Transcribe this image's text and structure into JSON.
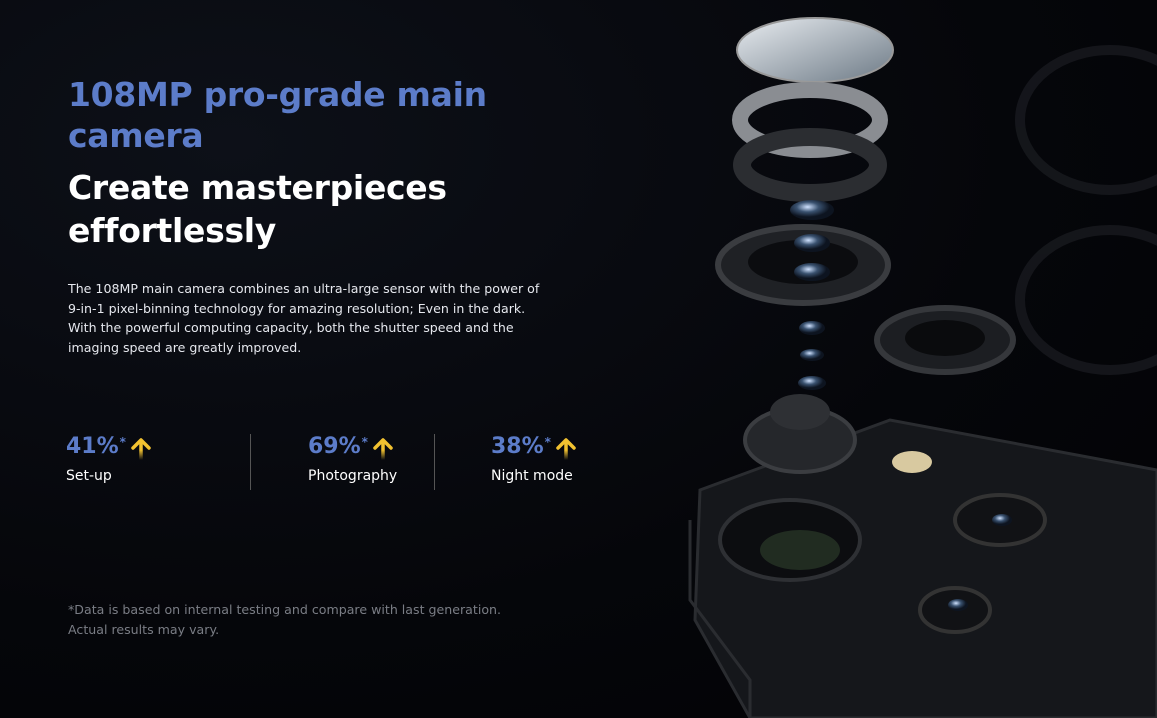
{
  "heading": {
    "title": "108MP pro-grade main camera",
    "subtitle": "Create masterpieces effortlessly"
  },
  "description": "The 108MP main camera combines an ultra-large sensor with the power of 9-in-1 pixel-binning technology for amazing resolution; Even in the dark. With the powerful computing capacity, both the shutter speed and the imaging speed are greatly improved.",
  "stats": [
    {
      "value": "41%",
      "mark": "*",
      "label": "Set-up",
      "icon": "arrow-up-icon"
    },
    {
      "value": "69%",
      "mark": "*",
      "label": "Photography",
      "icon": "arrow-up-icon"
    },
    {
      "value": "38%",
      "mark": "*",
      "label": "Night mode",
      "icon": "arrow-up-icon"
    }
  ],
  "footnote": "*Data is based on internal testing and compare with last generation. Actual results may vary.",
  "colors": {
    "accent": "#5c7cc9",
    "arrow": "#f2c230",
    "background": "#05060a"
  }
}
